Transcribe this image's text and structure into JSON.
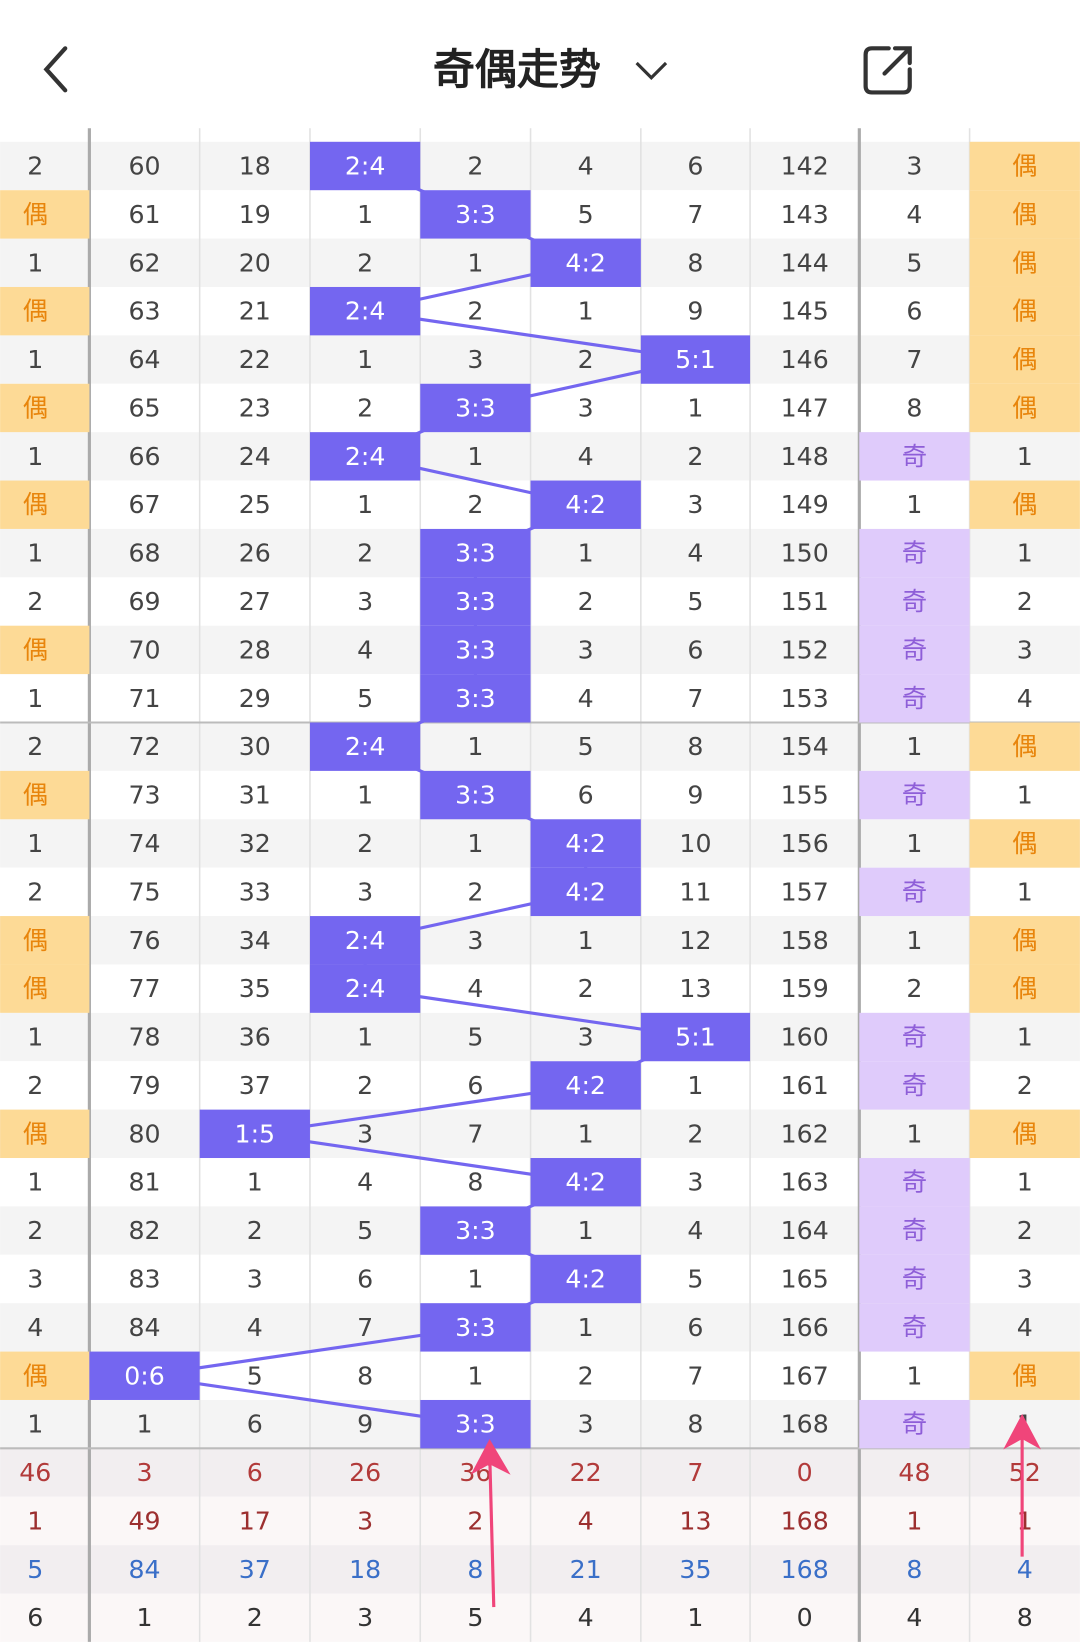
{
  "header": {
    "title": "奇偶走势"
  },
  "table": {
    "rows": [
      [
        2,
        60,
        18,
        "2:4",
        2,
        4,
        6,
        142,
        3,
        "偶"
      ],
      [
        "偶",
        61,
        19,
        1,
        "3:3",
        5,
        7,
        143,
        4,
        "偶"
      ],
      [
        1,
        62,
        20,
        2,
        1,
        "4:2",
        8,
        144,
        5,
        "偶"
      ],
      [
        "偶",
        63,
        21,
        "2:4",
        2,
        1,
        9,
        145,
        6,
        "偶"
      ],
      [
        1,
        64,
        22,
        1,
        3,
        2,
        "5:1",
        146,
        7,
        "偶"
      ],
      [
        "偶",
        65,
        23,
        2,
        "3:3",
        3,
        1,
        147,
        8,
        "偶"
      ],
      [
        1,
        66,
        24,
        "2:4",
        1,
        4,
        2,
        148,
        "奇",
        1
      ],
      [
        "偶",
        67,
        25,
        1,
        2,
        "4:2",
        3,
        149,
        1,
        "偶"
      ],
      [
        1,
        68,
        26,
        2,
        "3:3",
        1,
        4,
        150,
        "奇",
        1
      ],
      [
        2,
        69,
        27,
        3,
        "3:3",
        2,
        5,
        151,
        "奇",
        2
      ],
      [
        "偶",
        70,
        28,
        4,
        "3:3",
        3,
        6,
        152,
        "奇",
        3
      ],
      [
        1,
        71,
        29,
        5,
        "3:3",
        4,
        7,
        153,
        "奇",
        4
      ],
      [
        2,
        72,
        30,
        "2:4",
        1,
        5,
        8,
        154,
        1,
        "偶"
      ],
      [
        "偶",
        73,
        31,
        1,
        "3:3",
        6,
        9,
        155,
        "奇",
        1
      ],
      [
        1,
        74,
        32,
        2,
        1,
        "4:2",
        10,
        156,
        1,
        "偶"
      ],
      [
        2,
        75,
        33,
        3,
        2,
        "4:2",
        11,
        157,
        "奇",
        1
      ],
      [
        "偶",
        76,
        34,
        "2:4",
        3,
        1,
        12,
        158,
        1,
        "偶"
      ],
      [
        "偶",
        77,
        35,
        "2:4",
        4,
        2,
        13,
        159,
        2,
        "偶"
      ],
      [
        1,
        78,
        36,
        1,
        5,
        3,
        "5:1",
        160,
        "奇",
        1
      ],
      [
        2,
        79,
        37,
        2,
        6,
        "4:2",
        1,
        161,
        "奇",
        2
      ],
      [
        "偶",
        80,
        "1:5",
        3,
        7,
        1,
        2,
        162,
        1,
        "偶"
      ],
      [
        1,
        81,
        1,
        4,
        8,
        "4:2",
        3,
        163,
        "奇",
        1
      ],
      [
        2,
        82,
        2,
        5,
        "3:3",
        1,
        4,
        164,
        "奇",
        2
      ],
      [
        3,
        83,
        3,
        6,
        1,
        "4:2",
        5,
        165,
        "奇",
        3
      ],
      [
        4,
        84,
        4,
        7,
        "3:3",
        1,
        6,
        166,
        "奇",
        4
      ],
      [
        "偶",
        "0:6",
        5,
        8,
        1,
        2,
        7,
        167,
        1,
        "偶"
      ],
      [
        1,
        1,
        6,
        9,
        "3:3",
        3,
        8,
        168,
        "奇",
        1
      ]
    ],
    "stats": [
      [
        46,
        3,
        6,
        26,
        36,
        22,
        7,
        0,
        48,
        52
      ],
      [
        1,
        49,
        17,
        3,
        2,
        4,
        13,
        168,
        1,
        1
      ],
      [
        5,
        84,
        37,
        18,
        8,
        21,
        35,
        168,
        8,
        4
      ],
      [
        6,
        1,
        2,
        3,
        5,
        4,
        1,
        0,
        4,
        8
      ]
    ]
  }
}
